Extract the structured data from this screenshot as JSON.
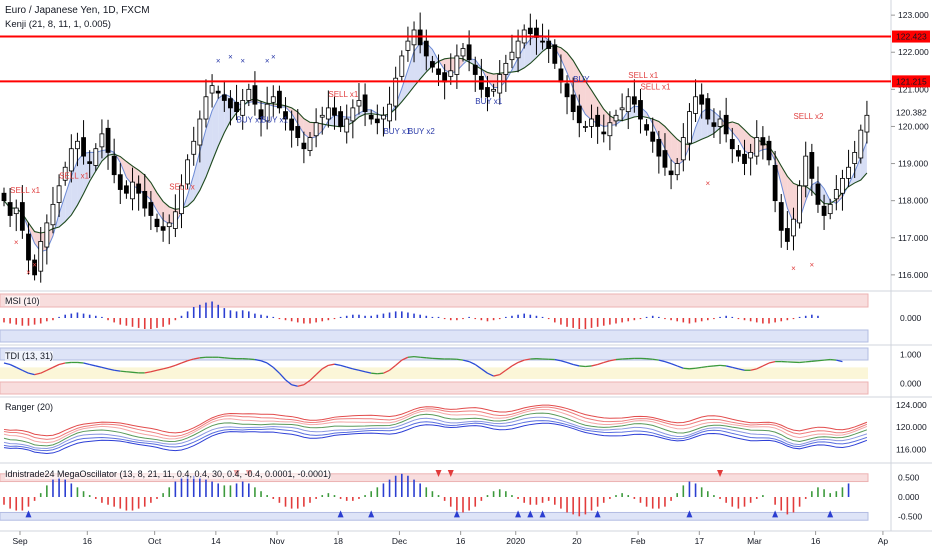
{
  "header": {
    "symbol_line": "Euro / Japanese Yen, 1D, FXCM",
    "indicator_line": "Kenji (21, 8, 11, 1, 0.005)"
  },
  "panes": {
    "msi_label": "MSI (10)",
    "tdi_label": "TDI (13, 31)",
    "ranger_label": "Ranger (20)",
    "mega_label": "Idnistrade24 MegaOscillator (13, 8, 21, 11, 0.4, 0.4, 30, 0.4, -0.4, 0.0001, -0.0001)"
  },
  "colors": {
    "bull": "#000000",
    "bear": "#000000",
    "level_line": "#ff0000",
    "buy_text": "#2a3aa8",
    "sell_text": "#e04040",
    "upper_band": "#f4c7c7",
    "lower_band": "#c9d3f2",
    "price_tag": "#ff0000"
  },
  "chart_data": [
    {
      "type": "candlestick",
      "pane": "price",
      "ylim": [
        115.7,
        123.3
      ],
      "y_ticks": [
        "123.000",
        "122.000",
        "121.000",
        "120.000",
        "119.000",
        "118.000",
        "117.000",
        "116.000"
      ],
      "price_tags": [
        "122.423",
        "121.215",
        "120.382"
      ],
      "levels": [
        122.423,
        121.215
      ],
      "last_price": 120.382,
      "x_tick_labels": [
        "Sep",
        "16",
        "Oct",
        "14",
        "Nov",
        "18",
        "Dec",
        "16",
        "2020",
        "20",
        "Feb",
        "17",
        "Mar",
        "16",
        "Ap"
      ],
      "x_tick_bars": [
        0,
        11,
        22,
        32,
        42,
        52,
        62,
        72,
        81,
        91,
        101,
        111,
        120,
        130,
        141
      ],
      "closes": [
        118.0,
        117.6,
        117.8,
        117.2,
        116.4,
        116.0,
        116.9,
        117.4,
        117.9,
        118.4,
        118.9,
        119.4,
        119.6,
        119.2,
        119.0,
        119.4,
        119.8,
        119.3,
        118.7,
        118.3,
        118.2,
        118.5,
        118.2,
        117.8,
        117.6,
        117.3,
        117.2,
        117.4,
        117.7,
        118.4,
        119.1,
        119.6,
        120.2,
        120.8,
        121.1,
        120.9,
        120.7,
        120.5,
        120.4,
        120.7,
        121.0,
        120.6,
        120.2,
        120.6,
        120.8,
        120.5,
        120.2,
        119.9,
        119.7,
        119.4,
        119.7,
        120.1,
        120.3,
        120.5,
        120.3,
        120.0,
        120.2,
        120.5,
        120.7,
        120.4,
        120.2,
        120.1,
        120.3,
        120.6,
        121.3,
        121.9,
        122.3,
        122.6,
        122.2,
        121.9,
        121.6,
        121.4,
        121.2,
        121.5,
        121.9,
        122.1,
        121.8,
        121.4,
        121.0,
        120.8,
        121.0,
        121.4,
        121.7,
        122.0,
        122.3,
        122.6,
        122.5,
        122.4,
        122.3,
        122.1,
        121.7,
        121.2,
        120.8,
        120.4,
        120.1,
        120.0,
        120.2,
        120.0,
        119.8,
        120.1,
        120.3,
        120.5,
        120.8,
        120.6,
        120.2,
        119.9,
        119.6,
        119.2,
        118.9,
        118.7,
        119.0,
        119.7,
        120.4,
        120.8,
        120.6,
        120.2,
        120.0,
        120.2,
        119.8,
        119.4,
        119.2,
        119.0,
        119.3,
        119.7,
        119.5,
        119.1,
        118.0,
        117.2,
        116.9,
        117.5,
        118.4,
        119.2,
        118.6,
        117.9,
        117.6,
        117.9,
        118.3,
        118.6,
        118.9,
        119.3,
        119.9,
        120.3
      ],
      "signals": [
        {
          "text": "SELL x1",
          "kind": "sell",
          "bar": 1,
          "price": 118.2
        },
        {
          "text": "SELL x1",
          "kind": "sell",
          "bar": 9,
          "price": 118.6
        },
        {
          "text": "SELL x",
          "kind": "sell",
          "bar": 27,
          "price": 118.3
        },
        {
          "text": "BUY x1",
          "kind": "buy",
          "bar": 38,
          "price": 120.1
        },
        {
          "text": "BUY x1",
          "kind": "buy",
          "bar": 42,
          "price": 120.1
        },
        {
          "text": "SELL x1",
          "kind": "sell",
          "bar": 53,
          "price": 120.8
        },
        {
          "text": "BUY x1",
          "kind": "buy",
          "bar": 62,
          "price": 119.8
        },
        {
          "text": "BUY x2",
          "kind": "buy",
          "bar": 66,
          "price": 119.8
        },
        {
          "text": "BUY x1",
          "kind": "buy",
          "bar": 77,
          "price": 120.6
        },
        {
          "text": "BUY",
          "kind": "buy",
          "bar": 93,
          "price": 121.2
        },
        {
          "text": "SELL x1",
          "kind": "sell",
          "bar": 102,
          "price": 121.3
        },
        {
          "text": "SELL x1",
          "kind": "sell",
          "bar": 104,
          "price": 121.0
        },
        {
          "text": "SELL x2",
          "kind": "sell",
          "bar": 129,
          "price": 120.2
        }
      ]
    },
    {
      "type": "histogram",
      "pane": "msi",
      "y_ticks": [
        "0.000"
      ],
      "ylim": [
        -1,
        1
      ],
      "values": [
        -0.2,
        -0.25,
        -0.3,
        -0.35,
        -0.35,
        -0.3,
        -0.25,
        -0.15,
        -0.1,
        0.05,
        0.15,
        0.2,
        0.25,
        0.2,
        0.15,
        0.1,
        0.05,
        -0.1,
        -0.2,
        -0.3,
        -0.35,
        -0.4,
        -0.45,
        -0.5,
        -0.5,
        -0.45,
        -0.4,
        -0.3,
        -0.1,
        0.1,
        0.3,
        0.5,
        0.6,
        0.7,
        0.75,
        0.6,
        0.45,
        0.35,
        0.3,
        0.35,
        0.3,
        0.2,
        0.15,
        0.1,
        0.05,
        -0.05,
        -0.1,
        -0.15,
        -0.2,
        -0.25,
        -0.25,
        -0.2,
        -0.15,
        -0.1,
        -0.05,
        0.05,
        0.1,
        0.15,
        0.15,
        0.1,
        0.1,
        0.15,
        0.2,
        0.25,
        0.3,
        0.3,
        0.25,
        0.2,
        0.15,
        0.1,
        0.05,
        0.05,
        -0.05,
        -0.1,
        -0.1,
        -0.05,
        0.05,
        -0.05,
        -0.1,
        -0.15,
        -0.1,
        -0.05,
        0.05,
        0.1,
        0.15,
        0.2,
        0.15,
        0.1,
        0.05,
        -0.05,
        -0.2,
        -0.3,
        -0.4,
        -0.45,
        -0.5,
        -0.5,
        -0.45,
        -0.4,
        -0.35,
        -0.3,
        -0.25,
        -0.2,
        -0.15,
        -0.1,
        -0.05,
        0.05,
        0.1,
        0.05,
        -0.05,
        -0.1,
        -0.15,
        -0.2,
        -0.25,
        -0.2,
        -0.15,
        -0.1,
        -0.05,
        0.05,
        0.1,
        0.05,
        -0.05,
        -0.1,
        -0.15,
        -0.2,
        -0.25,
        -0.25,
        -0.2,
        -0.15,
        -0.1,
        -0.05,
        0.05,
        0.1,
        0.15,
        0.1
      ]
    },
    {
      "type": "line",
      "pane": "tdi",
      "y_ticks": [
        "1.000",
        "0.000"
      ],
      "ylim": [
        -0.3,
        1.15
      ],
      "values": [
        0.7,
        0.65,
        0.55,
        0.45,
        0.35,
        0.3,
        0.35,
        0.45,
        0.55,
        0.65,
        0.7,
        0.72,
        0.72,
        0.7,
        0.65,
        0.6,
        0.55,
        0.5,
        0.45,
        0.42,
        0.4,
        0.38,
        0.36,
        0.36,
        0.4,
        0.45,
        0.5,
        0.55,
        0.62,
        0.7,
        0.78,
        0.84,
        0.88,
        0.9,
        0.9,
        0.9,
        0.88,
        0.86,
        0.85,
        0.85,
        0.84,
        0.82,
        0.78,
        0.7,
        0.55,
        0.35,
        0.12,
        -0.05,
        -0.1,
        -0.05,
        0.1,
        0.3,
        0.5,
        0.62,
        0.66,
        0.62,
        0.56,
        0.5,
        0.45,
        0.4,
        0.35,
        0.33,
        0.35,
        0.45,
        0.62,
        0.8,
        0.9,
        0.92,
        0.9,
        0.88,
        0.86,
        0.85,
        0.84,
        0.84,
        0.83,
        0.8,
        0.75,
        0.65,
        0.5,
        0.35,
        0.25,
        0.3,
        0.45,
        0.6,
        0.72,
        0.8,
        0.84,
        0.85,
        0.84,
        0.83,
        0.82,
        0.78,
        0.72,
        0.65,
        0.6,
        0.58,
        0.6,
        0.65,
        0.72,
        0.78,
        0.82,
        0.84,
        0.85,
        0.86,
        0.86,
        0.85,
        0.83,
        0.8,
        0.75,
        0.68,
        0.6,
        0.52,
        0.5,
        0.52,
        0.55,
        0.58,
        0.6,
        0.62,
        0.6,
        0.55,
        0.5,
        0.45,
        0.45,
        0.5,
        0.6,
        0.7,
        0.75,
        0.75,
        0.74,
        0.73,
        0.72,
        0.74,
        0.76,
        0.78,
        0.8,
        0.82,
        0.8,
        0.75
      ]
    },
    {
      "type": "line",
      "pane": "ranger",
      "y_ticks": [
        "124.000",
        "120.000",
        "116.000"
      ],
      "ylim": [
        114.5,
        124.5
      ],
      "series_offsets": [
        1.6,
        1.1,
        0.6,
        0.0,
        -0.6,
        -1.1,
        -1.6
      ]
    },
    {
      "type": "histogram",
      "pane": "mega",
      "y_ticks": [
        "0.500",
        "0.000",
        "-0.500"
      ],
      "ylim": [
        -0.75,
        0.75
      ],
      "markers_up_bars": [
        4,
        55,
        60,
        74,
        84,
        86,
        88,
        97,
        112,
        126,
        135
      ],
      "markers_down_bars": [
        38,
        40,
        71,
        73,
        117
      ],
      "values": [
        -0.2,
        -0.3,
        -0.35,
        -0.35,
        -0.25,
        -0.1,
        0.1,
        0.3,
        0.45,
        0.5,
        0.45,
        0.35,
        0.25,
        0.15,
        0.05,
        -0.05,
        -0.15,
        -0.2,
        -0.25,
        -0.3,
        -0.35,
        -0.35,
        -0.3,
        -0.25,
        -0.15,
        -0.05,
        0.1,
        0.25,
        0.4,
        0.5,
        0.55,
        0.55,
        0.5,
        0.45,
        0.4,
        0.35,
        0.3,
        0.3,
        0.35,
        0.4,
        0.35,
        0.25,
        0.15,
        0.05,
        -0.05,
        -0.15,
        -0.25,
        -0.3,
        -0.3,
        -0.25,
        -0.15,
        -0.05,
        0.05,
        0.1,
        0.05,
        -0.05,
        -0.1,
        -0.1,
        -0.05,
        0.05,
        0.15,
        0.25,
        0.35,
        0.45,
        0.55,
        0.6,
        0.55,
        0.45,
        0.35,
        0.25,
        0.15,
        0.05,
        -0.1,
        -0.25,
        -0.35,
        -0.4,
        -0.35,
        -0.25,
        -0.1,
        0.05,
        0.15,
        0.2,
        0.15,
        0.05,
        -0.05,
        -0.15,
        -0.2,
        -0.2,
        -0.15,
        -0.1,
        -0.2,
        -0.3,
        -0.4,
        -0.45,
        -0.5,
        -0.45,
        -0.35,
        -0.25,
        -0.15,
        -0.05,
        0.05,
        0.1,
        0.05,
        -0.05,
        -0.15,
        -0.25,
        -0.3,
        -0.3,
        -0.25,
        -0.1,
        0.1,
        0.3,
        0.4,
        0.35,
        0.25,
        0.15,
        0.05,
        -0.05,
        -0.15,
        -0.25,
        -0.3,
        -0.25,
        -0.15,
        -0.05,
        0.05,
        0.0,
        -0.2,
        -0.35,
        -0.45,
        -0.4,
        -0.25,
        -0.05,
        0.15,
        0.25,
        0.2,
        0.1,
        0.15,
        0.25,
        0.35
      ]
    }
  ]
}
